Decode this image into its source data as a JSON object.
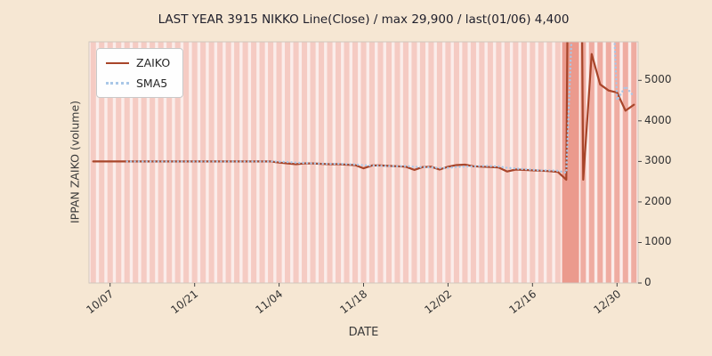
{
  "chart_data": {
    "type": "line",
    "title": "LAST YEAR 3915 NIKKO Line(Close) / max 29,900 / last(01/06) 4,400",
    "xlabel": "DATE",
    "ylabel": "IPPAN ZAIKO (volume)",
    "legend_position": "upper left",
    "grid": false,
    "ylim": [
      0,
      5950
    ],
    "yticks": [
      0,
      1000,
      2000,
      3000,
      4000,
      5000
    ],
    "n_points": 65,
    "xticks": [
      {
        "index": 2,
        "label": "10/07"
      },
      {
        "index": 12,
        "label": "10/21"
      },
      {
        "index": 22,
        "label": "11/04"
      },
      {
        "index": 32,
        "label": "11/18"
      },
      {
        "index": 42,
        "label": "12/02"
      },
      {
        "index": 52,
        "label": "12/16"
      },
      {
        "index": 62,
        "label": "12/30"
      }
    ],
    "series": [
      {
        "name": "ZAIKO",
        "color": "#a8452a",
        "style": "solid",
        "values": [
          3000,
          3000,
          3000,
          3000,
          3000,
          3000,
          3000,
          3000,
          3000,
          3000,
          3000,
          3000,
          3000,
          3000,
          3000,
          3000,
          3000,
          3000,
          3000,
          3000,
          3000,
          3000,
          2970,
          2950,
          2930,
          2950,
          2950,
          2940,
          2930,
          2930,
          2920,
          2910,
          2830,
          2900,
          2900,
          2890,
          2880,
          2870,
          2790,
          2860,
          2870,
          2800,
          2870,
          2910,
          2920,
          2880,
          2870,
          2860,
          2850,
          2750,
          2800,
          2790,
          2780,
          2770,
          2760,
          2740,
          2550,
          29900,
          2550,
          5650,
          4900,
          4750,
          4700,
          4250,
          4400
        ]
      },
      {
        "name": "SMA5",
        "color": "#a9c7e7",
        "style": "dotted",
        "derived_from": "ZAIKO",
        "window": 5
      }
    ],
    "annotations": {
      "max_value": 29900,
      "last_date": "01/06",
      "last_value": 4400
    },
    "highlight": {
      "spike_start": 56,
      "spike_end": 57,
      "tail_start": 58
    },
    "colors": {
      "figure_bg": "#f6e7d3",
      "plot_bg": "#fbedea",
      "stripe": "#f5cbc3",
      "stripe_tail": "#efaca1",
      "spike_band": "#eb9a8d",
      "frame": "#d0c7be",
      "tick": "#444444",
      "zaiko_line": "#a8452a",
      "sma_line": "#a9c7e7"
    }
  }
}
